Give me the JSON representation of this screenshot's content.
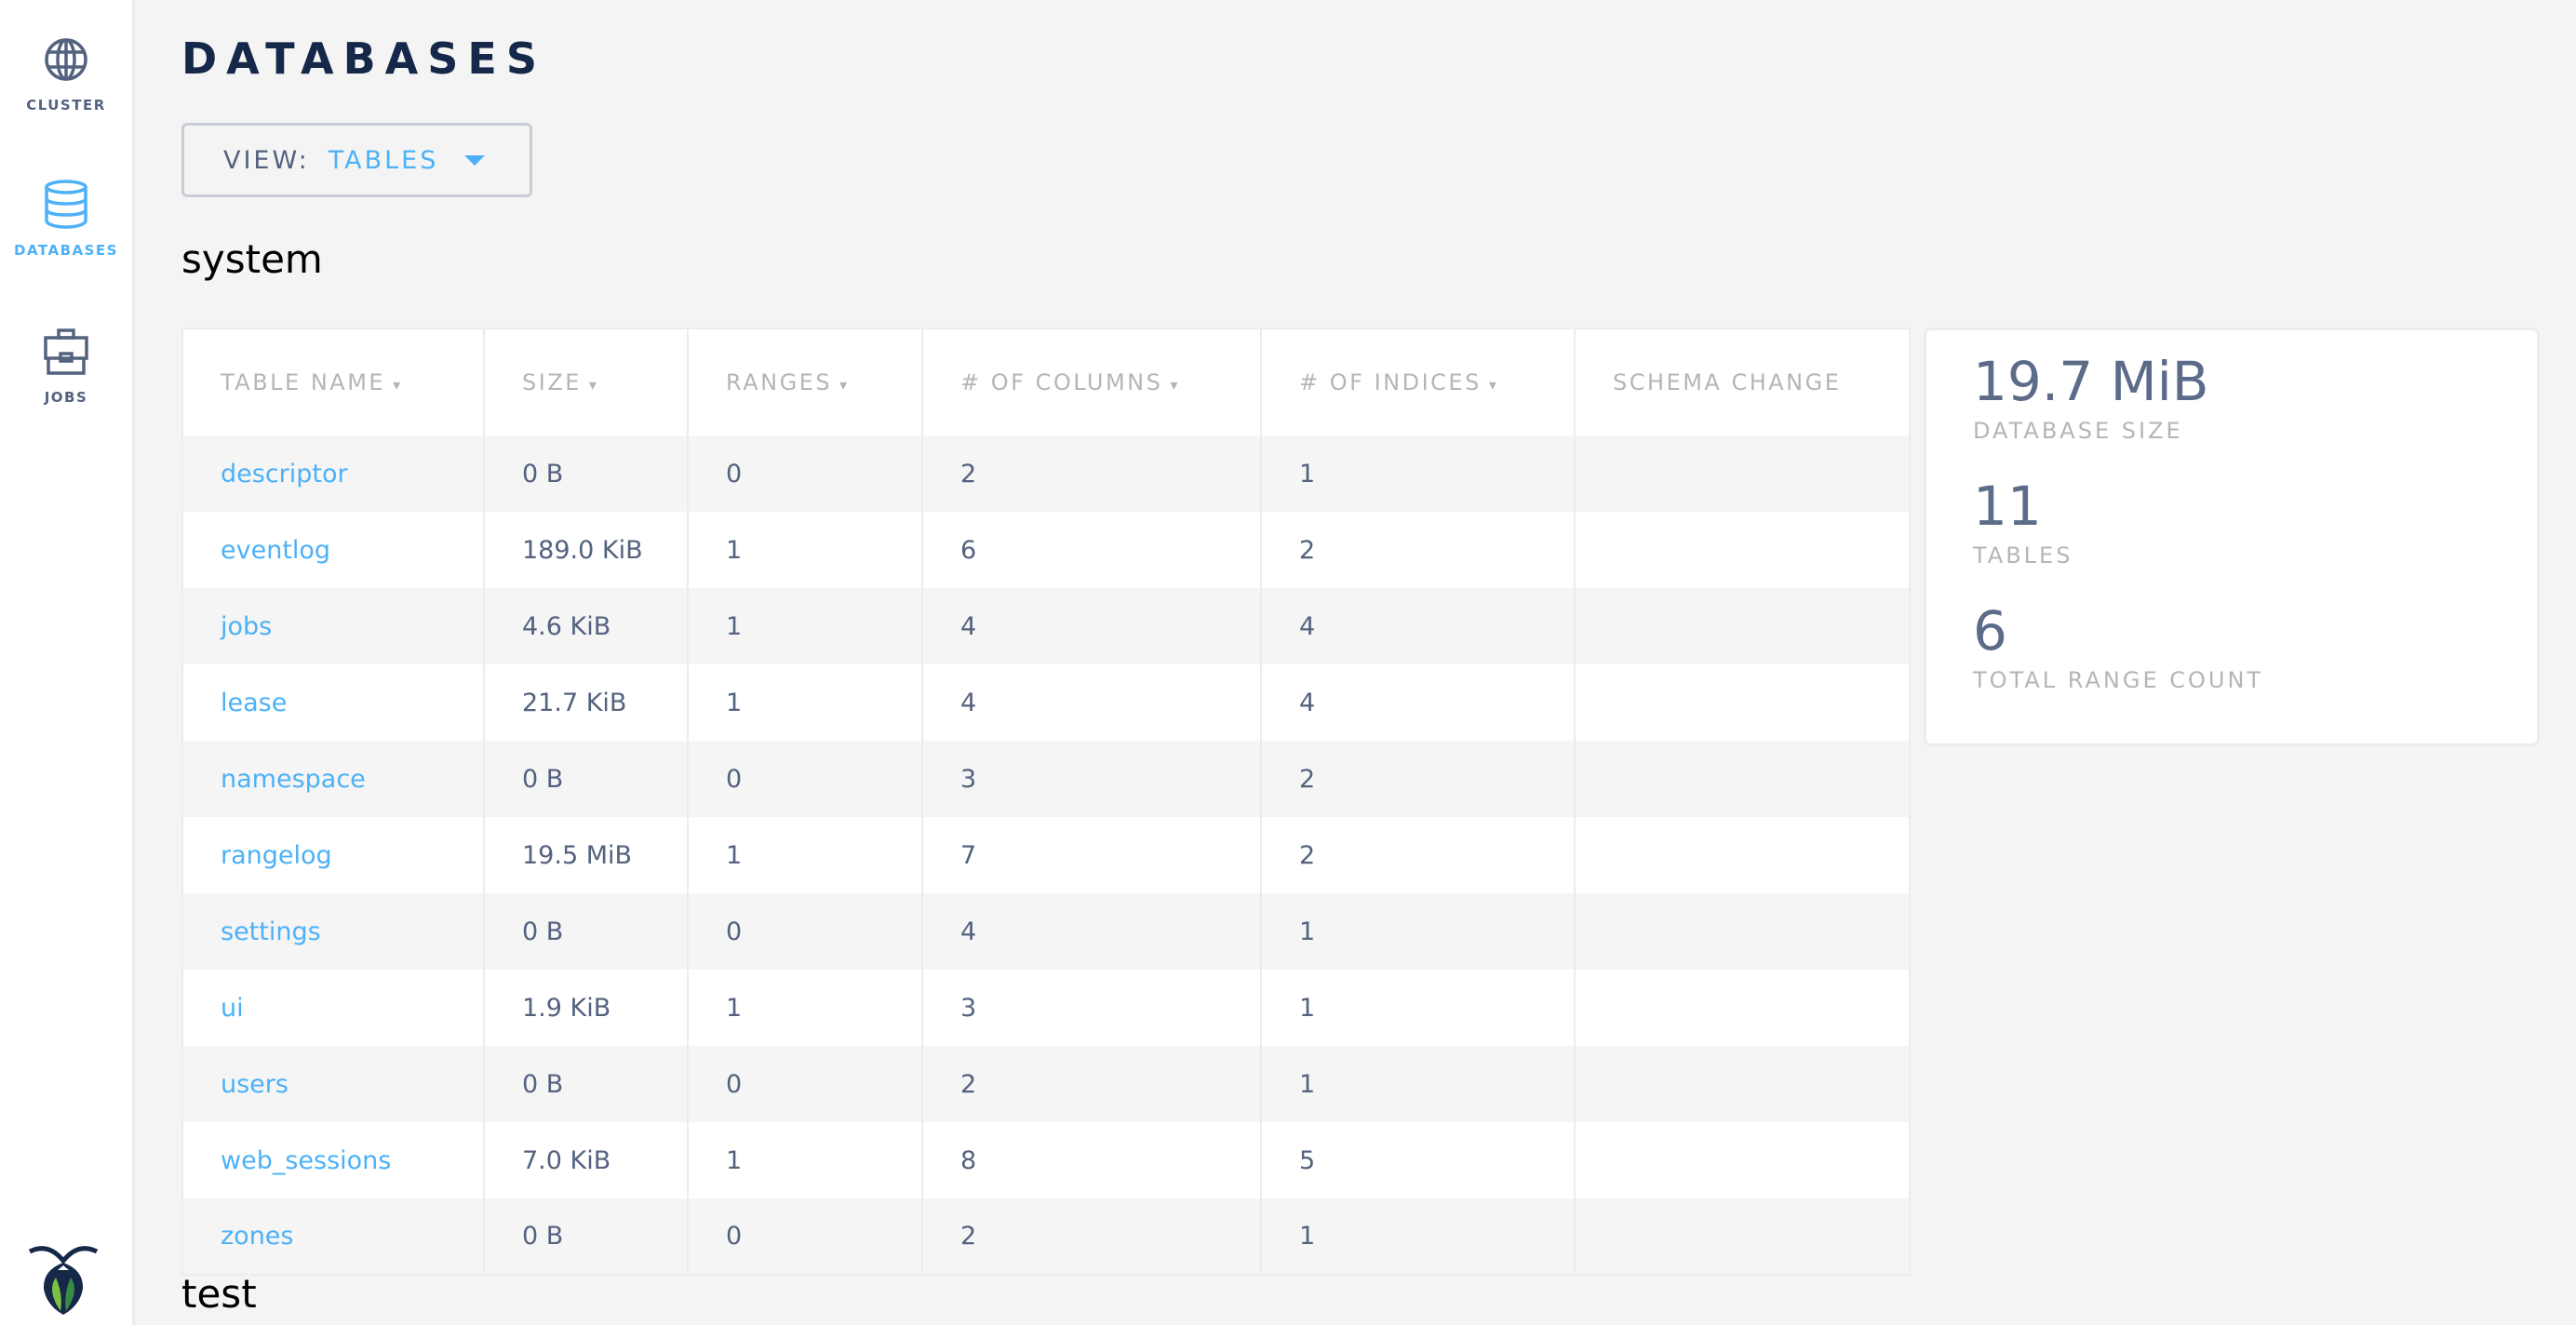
{
  "sidebar": {
    "items": [
      {
        "label": "CLUSTER",
        "icon": "globe-icon",
        "active": false
      },
      {
        "label": "DATABASES",
        "icon": "database-icon",
        "active": true
      },
      {
        "label": "JOBS",
        "icon": "briefcase-icon",
        "active": false
      }
    ],
    "logo": "cockroachdb-logo"
  },
  "page": {
    "title": "DATABASES"
  },
  "view": {
    "label": "VIEW:",
    "value": "TABLES"
  },
  "colors": {
    "accent": "#4db1f7",
    "text": "#54627f",
    "title": "#152849"
  },
  "databases": [
    {
      "name": "system",
      "columns": [
        "TABLE NAME",
        "SIZE",
        "RANGES",
        "# OF COLUMNS",
        "# OF INDICES",
        "SCHEMA CHANGE"
      ],
      "sort_indicator": "▾",
      "rows": [
        [
          "descriptor",
          "0 B",
          "0",
          "2",
          "1",
          ""
        ],
        [
          "eventlog",
          "189.0 KiB",
          "1",
          "6",
          "2",
          ""
        ],
        [
          "jobs",
          "4.6 KiB",
          "1",
          "4",
          "4",
          ""
        ],
        [
          "lease",
          "21.7 KiB",
          "1",
          "4",
          "4",
          ""
        ],
        [
          "namespace",
          "0 B",
          "0",
          "3",
          "2",
          ""
        ],
        [
          "rangelog",
          "19.5 MiB",
          "1",
          "7",
          "2",
          ""
        ],
        [
          "settings",
          "0 B",
          "0",
          "4",
          "1",
          ""
        ],
        [
          "ui",
          "1.9 KiB",
          "1",
          "3",
          "1",
          ""
        ],
        [
          "users",
          "0 B",
          "0",
          "2",
          "1",
          ""
        ],
        [
          "web_sessions",
          "7.0 KiB",
          "1",
          "8",
          "5",
          ""
        ],
        [
          "zones",
          "0 B",
          "0",
          "2",
          "1",
          ""
        ]
      ],
      "stats": [
        {
          "value": "19.7 MiB",
          "label": "DATABASE SIZE"
        },
        {
          "value": "11",
          "label": "TABLES"
        },
        {
          "value": "6",
          "label": "TOTAL RANGE COUNT"
        }
      ]
    },
    {
      "name": "test"
    }
  ]
}
